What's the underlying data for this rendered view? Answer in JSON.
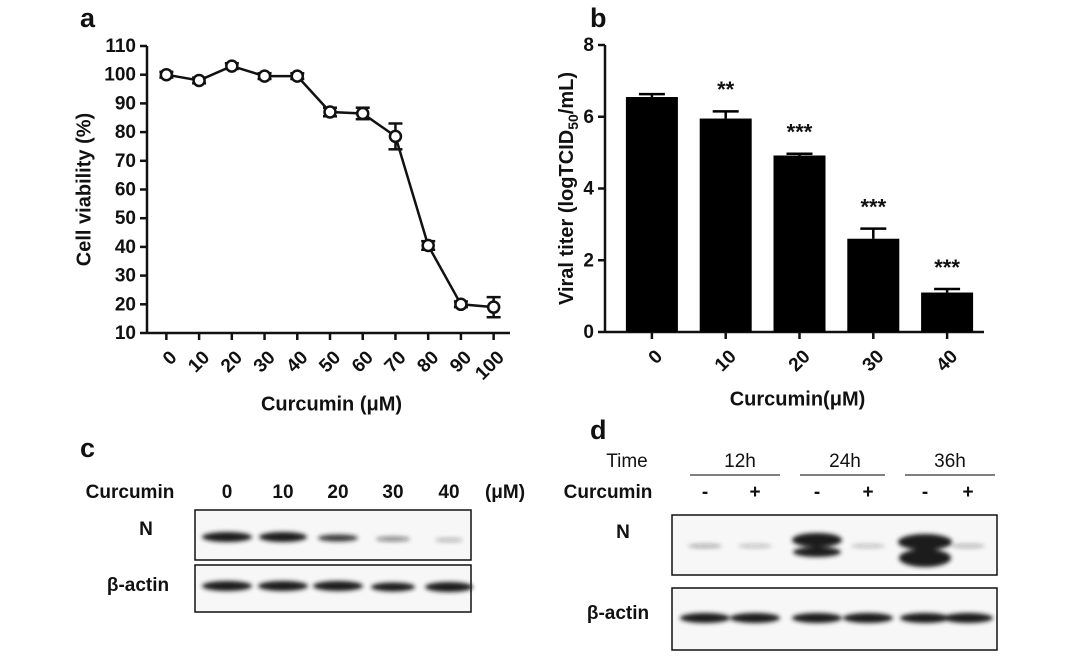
{
  "chart_data": [
    {
      "type": "line",
      "panel_label": "a",
      "xlabel": "Curcumin (μM)",
      "ylabel": "Cell viability (%)",
      "categories": [
        "0",
        "10",
        "20",
        "30",
        "40",
        "50",
        "60",
        "70",
        "80",
        "90",
        "100"
      ],
      "values": [
        100,
        98,
        103,
        99.5,
        99.5,
        87,
        86.5,
        78.5,
        40.5,
        20,
        19
      ],
      "errors": [
        1,
        1,
        1,
        1,
        1,
        1.5,
        2,
        4.5,
        1.5,
        1,
        3.5
      ],
      "color": "#111111",
      "ylim": [
        10,
        110
      ],
      "yticks": [
        10,
        20,
        30,
        40,
        50,
        60,
        70,
        80,
        90,
        100,
        110
      ],
      "grid": false
    },
    {
      "type": "bar",
      "panel_label": "b",
      "xlabel": "Curcumin(μM)",
      "ylabel": {
        "text": "Viral titer (logTCID",
        "sub": "50",
        "tail": "/mL)"
      },
      "categories": [
        "0",
        "10",
        "20",
        "30",
        "40"
      ],
      "values": [
        6.55,
        5.95,
        4.92,
        2.6,
        1.1
      ],
      "errors": [
        0.08,
        0.2,
        0.05,
        0.28,
        0.1
      ],
      "annotations": [
        null,
        "**",
        "***",
        "***",
        "***"
      ],
      "color": "#000000",
      "ylim": [
        0,
        8
      ],
      "yticks": [
        0,
        2,
        4,
        6,
        8
      ],
      "grid": false
    }
  ],
  "blots": [
    {
      "panel_label": "c",
      "treatment": "Curcumin",
      "lanes": [
        "0",
        "10",
        "20",
        "30",
        "40"
      ],
      "unit": "(μM)",
      "rows": [
        "N",
        "β-actin"
      ]
    },
    {
      "panel_label": "d",
      "time_label": "Time",
      "times": [
        "12h",
        "24h",
        "36h"
      ],
      "treatment": "Curcumin",
      "signs": [
        "-",
        "+",
        "-",
        "+",
        "-",
        "+"
      ],
      "rows": [
        "N",
        "β-actin"
      ]
    }
  ]
}
